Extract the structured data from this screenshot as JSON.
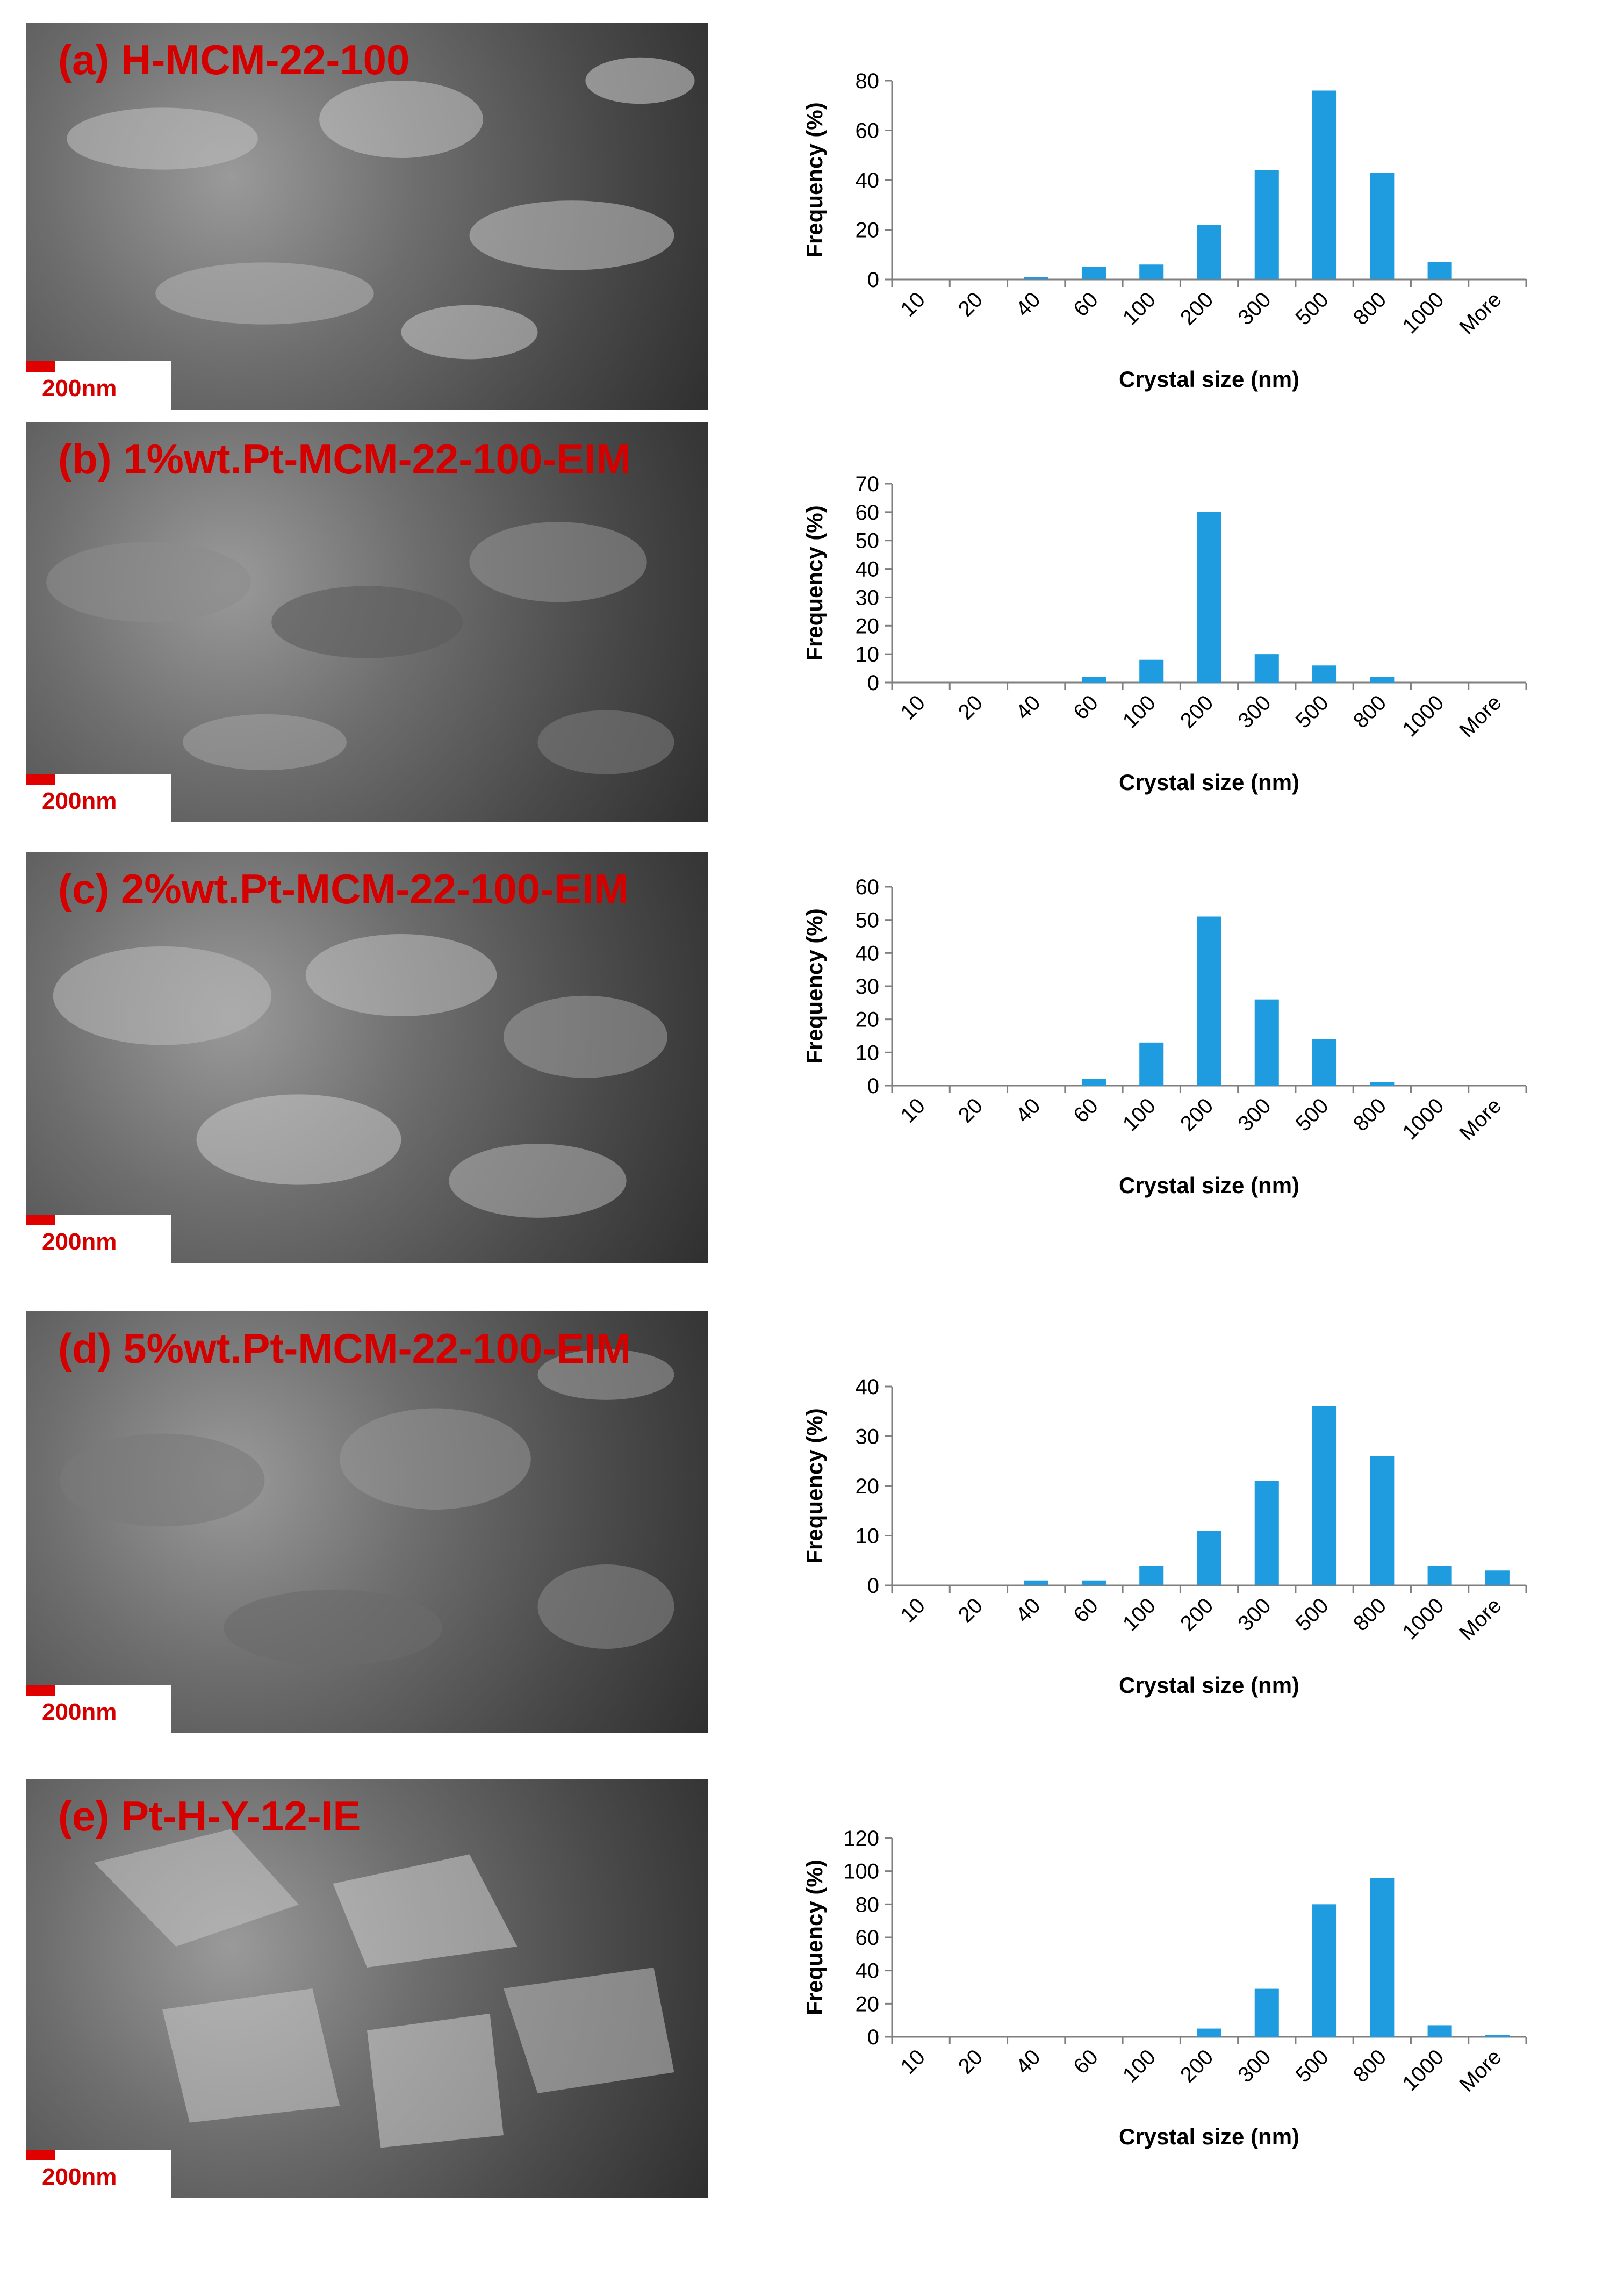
{
  "colors": {
    "bar": "#1f9ce0",
    "label": "#d40000",
    "axis": "#7f7f7f"
  },
  "panels": [
    {
      "label": "(a) H-MCM-22-100",
      "scale_text": "200nm"
    },
    {
      "label": "(b) 1%wt.Pt-MCM-22-100-EIM",
      "scale_text": "200nm"
    },
    {
      "label": "(c) 2%wt.Pt-MCM-22-100-EIM",
      "scale_text": "200nm"
    },
    {
      "label": "(d) 5%wt.Pt-MCM-22-100-EIM",
      "scale_text": "200nm"
    },
    {
      "label": "(e) Pt-H-Y-12-IE",
      "scale_text": "200nm"
    }
  ],
  "chart_data": [
    {
      "type": "bar",
      "categories": [
        "10",
        "20",
        "40",
        "60",
        "100",
        "200",
        "300",
        "500",
        "800",
        "1000",
        "More"
      ],
      "values": [
        0,
        0,
        1,
        5,
        6,
        22,
        44,
        76,
        43,
        7,
        0
      ],
      "xlabel": "Crystal size (nm)",
      "ylabel": "Frequency (%)",
      "ylim": [
        0,
        80
      ],
      "yticks": [
        0,
        20,
        40,
        60,
        80
      ]
    },
    {
      "type": "bar",
      "categories": [
        "10",
        "20",
        "40",
        "60",
        "100",
        "200",
        "300",
        "500",
        "800",
        "1000",
        "More"
      ],
      "values": [
        0,
        0,
        0,
        2,
        8,
        60,
        10,
        6,
        2,
        0,
        0
      ],
      "xlabel": "Crystal size (nm)",
      "ylabel": "Frequency (%)",
      "ylim": [
        0,
        70
      ],
      "yticks": [
        0,
        10,
        20,
        30,
        40,
        50,
        60,
        70
      ]
    },
    {
      "type": "bar",
      "categories": [
        "10",
        "20",
        "40",
        "60",
        "100",
        "200",
        "300",
        "500",
        "800",
        "1000",
        "More"
      ],
      "values": [
        0,
        0,
        0,
        2,
        13,
        51,
        26,
        14,
        1,
        0,
        0
      ],
      "xlabel": "Crystal size (nm)",
      "ylabel": "Frequency (%)",
      "ylim": [
        0,
        60
      ],
      "yticks": [
        0,
        10,
        20,
        30,
        40,
        50,
        60
      ]
    },
    {
      "type": "bar",
      "categories": [
        "10",
        "20",
        "40",
        "60",
        "100",
        "200",
        "300",
        "500",
        "800",
        "1000",
        "More"
      ],
      "values": [
        0,
        0,
        1,
        1,
        4,
        11,
        21,
        36,
        26,
        4,
        3
      ],
      "xlabel": "Crystal size (nm)",
      "ylabel": "Frequency (%)",
      "ylim": [
        0,
        40
      ],
      "yticks": [
        0,
        10,
        20,
        30,
        40
      ]
    },
    {
      "type": "bar",
      "categories": [
        "10",
        "20",
        "40",
        "60",
        "100",
        "200",
        "300",
        "500",
        "800",
        "1000",
        "More"
      ],
      "values": [
        0,
        0,
        0,
        0,
        0,
        5,
        29,
        80,
        96,
        7,
        1
      ],
      "xlabel": "Crystal size (nm)",
      "ylabel": "Frequency (%)",
      "ylim": [
        0,
        120
      ],
      "yticks": [
        0,
        20,
        40,
        60,
        80,
        100,
        120
      ]
    }
  ]
}
